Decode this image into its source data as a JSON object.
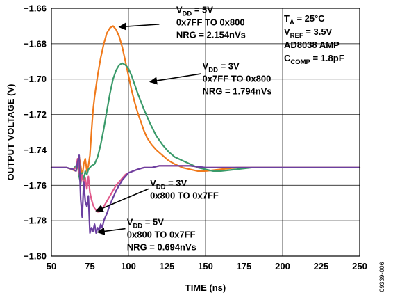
{
  "figure_id": "09339-006",
  "chart_data": {
    "type": "line",
    "xlabel": "TIME (ns)",
    "ylabel": "OUTPUT VOLTAGE (V)",
    "xlim": [
      50,
      250
    ],
    "ylim": [
      -1.8,
      -1.66
    ],
    "xticks": [
      50,
      75,
      100,
      125,
      150,
      175,
      200,
      225,
      250
    ],
    "yticks": [
      -1.66,
      -1.68,
      -1.7,
      -1.72,
      -1.74,
      -1.76,
      -1.78,
      -1.8
    ],
    "xtick_labels": [
      "50",
      "75",
      "100",
      "125",
      "150",
      "175",
      "200",
      "225",
      "250"
    ],
    "ytick_labels": [
      "−1.66",
      "−1.68",
      "−1.70",
      "−1.72",
      "−1.74",
      "−1.76",
      "−1.78",
      "−1.80"
    ],
    "grid": true,
    "legend": false,
    "conditions": [
      {
        "main": "T",
        "sub": "A",
        "rest": " = 25°C"
      },
      {
        "main": "V",
        "sub": "REF",
        "rest": " = 3.5V"
      },
      {
        "main": "AD8038 AMP",
        "sub": "",
        "rest": ""
      },
      {
        "main": "C",
        "sub": "COMP",
        "rest": " = 1.8pF"
      }
    ],
    "series": [
      {
        "color": "#f07a1c",
        "x": [
          50,
          55,
          60,
          63,
          66,
          67,
          68,
          69,
          70,
          71,
          72,
          73,
          74,
          75,
          76,
          77,
          78,
          80,
          82,
          84,
          86,
          88,
          90,
          92,
          94,
          96,
          98,
          100,
          102,
          104,
          106,
          108,
          110,
          112,
          115,
          118,
          122,
          126,
          130,
          135,
          140,
          145,
          150,
          160,
          170,
          185,
          200,
          225,
          250
        ],
        "y": [
          -1.75,
          -1.75,
          -1.75,
          -1.751,
          -1.752,
          -1.748,
          -1.744,
          -1.749,
          -1.755,
          -1.748,
          -1.745,
          -1.752,
          -1.749,
          -1.743,
          -1.73,
          -1.718,
          -1.71,
          -1.698,
          -1.688,
          -1.68,
          -1.674,
          -1.671,
          -1.67,
          -1.672,
          -1.676,
          -1.682,
          -1.69,
          -1.698,
          -1.706,
          -1.713,
          -1.719,
          -1.724,
          -1.729,
          -1.733,
          -1.737,
          -1.74,
          -1.743,
          -1.746,
          -1.748,
          -1.75,
          -1.751,
          -1.752,
          -1.752,
          -1.751,
          -1.75,
          -1.75,
          -1.75,
          -1.75,
          -1.75
        ]
      },
      {
        "color": "#3a9a6a",
        "x": [
          50,
          55,
          60,
          64,
          67,
          68,
          69,
          70,
          71,
          72,
          73,
          74,
          75,
          76,
          78,
          80,
          82,
          84,
          86,
          88,
          90,
          92,
          94,
          96,
          98,
          100,
          102,
          104,
          106,
          110,
          114,
          118,
          122,
          126,
          130,
          135,
          140,
          145,
          150,
          155,
          160,
          170,
          180,
          190,
          200,
          225,
          250
        ],
        "y": [
          -1.75,
          -1.75,
          -1.75,
          -1.751,
          -1.748,
          -1.755,
          -1.759,
          -1.753,
          -1.757,
          -1.752,
          -1.754,
          -1.751,
          -1.75,
          -1.749,
          -1.748,
          -1.744,
          -1.737,
          -1.728,
          -1.718,
          -1.708,
          -1.7,
          -1.695,
          -1.692,
          -1.691,
          -1.692,
          -1.694,
          -1.698,
          -1.703,
          -1.708,
          -1.717,
          -1.725,
          -1.732,
          -1.737,
          -1.741,
          -1.744,
          -1.746,
          -1.748,
          -1.75,
          -1.751,
          -1.752,
          -1.752,
          -1.751,
          -1.75,
          -1.75,
          -1.75,
          -1.75,
          -1.75
        ]
      },
      {
        "color": "#e0588a",
        "x": [
          50,
          55,
          60,
          64,
          66,
          67,
          68,
          69,
          70,
          71,
          72,
          73,
          74,
          75,
          76,
          77,
          78,
          79,
          80,
          81,
          82,
          84,
          86,
          88,
          90,
          92,
          94,
          96,
          98,
          100,
          103,
          106,
          110,
          115,
          120,
          125,
          130,
          140,
          150,
          160,
          170,
          180,
          200,
          225,
          250
        ],
        "y": [
          -1.75,
          -1.75,
          -1.75,
          -1.751,
          -1.75,
          -1.745,
          -1.752,
          -1.758,
          -1.754,
          -1.76,
          -1.756,
          -1.762,
          -1.755,
          -1.764,
          -1.768,
          -1.771,
          -1.773,
          -1.774,
          -1.775,
          -1.775,
          -1.774,
          -1.772,
          -1.769,
          -1.766,
          -1.763,
          -1.76,
          -1.758,
          -1.756,
          -1.754,
          -1.753,
          -1.752,
          -1.751,
          -1.75,
          -1.75,
          -1.749,
          -1.749,
          -1.749,
          -1.749,
          -1.75,
          -1.75,
          -1.75,
          -1.75,
          -1.75,
          -1.75,
          -1.75
        ]
      },
      {
        "color": "#6b3fa0",
        "x": [
          50,
          55,
          60,
          64,
          66,
          67,
          68,
          69,
          70,
          71,
          72,
          73,
          74,
          75,
          76,
          77,
          78,
          79,
          80,
          81,
          82,
          83,
          84,
          86,
          88,
          90,
          92,
          94,
          96,
          98,
          100,
          103,
          106,
          110,
          115,
          120,
          125,
          130,
          140,
          150,
          160,
          170,
          180,
          200,
          225,
          250
        ],
        "y": [
          -1.75,
          -1.75,
          -1.75,
          -1.751,
          -1.752,
          -1.747,
          -1.743,
          -1.768,
          -1.778,
          -1.758,
          -1.769,
          -1.772,
          -1.766,
          -1.787,
          -1.784,
          -1.786,
          -1.782,
          -1.787,
          -1.784,
          -1.786,
          -1.782,
          -1.784,
          -1.78,
          -1.776,
          -1.771,
          -1.767,
          -1.763,
          -1.76,
          -1.757,
          -1.755,
          -1.753,
          -1.752,
          -1.751,
          -1.75,
          -1.75,
          -1.749,
          -1.749,
          -1.749,
          -1.749,
          -1.75,
          -1.75,
          -1.75,
          -1.75,
          -1.75,
          -1.75,
          -1.75
        ]
      }
    ],
    "annotations": [
      {
        "lines": [
          {
            "main": "V",
            "sub": "DD",
            "rest": " = 5V"
          },
          {
            "main": "0x7FF TO 0x800",
            "sub": "",
            "rest": ""
          },
          {
            "main": "NRG = 2.154nVs",
            "sub": "",
            "rest": ""
          }
        ],
        "text_x": 131,
        "text_y": -1.6625,
        "arrow_from": [
          120,
          -1.669
        ],
        "arrow_to": [
          94,
          -1.6705
        ]
      },
      {
        "lines": [
          {
            "main": "V",
            "sub": "DD",
            "rest": " = 3V"
          },
          {
            "main": "0x7FF TO 0x800",
            "sub": "",
            "rest": ""
          },
          {
            "main": "NRG = 1.794nVs",
            "sub": "",
            "rest": ""
          }
        ],
        "text_x": 148,
        "text_y": -1.6945,
        "arrow_from": [
          147,
          -1.697
        ],
        "arrow_to": [
          114,
          -1.7015
        ]
      },
      {
        "lines": [
          {
            "main": "V",
            "sub": "DD",
            "rest": " = 3V"
          },
          {
            "main": "0x800 TO 0x7FF",
            "sub": "",
            "rest": ""
          }
        ],
        "text_x": 114,
        "text_y": -1.7605,
        "arrow_from": [
          113,
          -1.762
        ],
        "arrow_to": [
          79,
          -1.7745
        ]
      },
      {
        "lines": [
          {
            "main": "V",
            "sub": "DD",
            "rest": " = 5V"
          },
          {
            "main": "0x800 TO 0x7FF",
            "sub": "",
            "rest": ""
          },
          {
            "main": "NRG = 0.694nVs",
            "sub": "",
            "rest": ""
          }
        ],
        "text_x": 99,
        "text_y": -1.7825,
        "arrow_from": [
          98,
          -1.7845
        ],
        "arrow_to": [
          80,
          -1.7865
        ]
      }
    ]
  }
}
